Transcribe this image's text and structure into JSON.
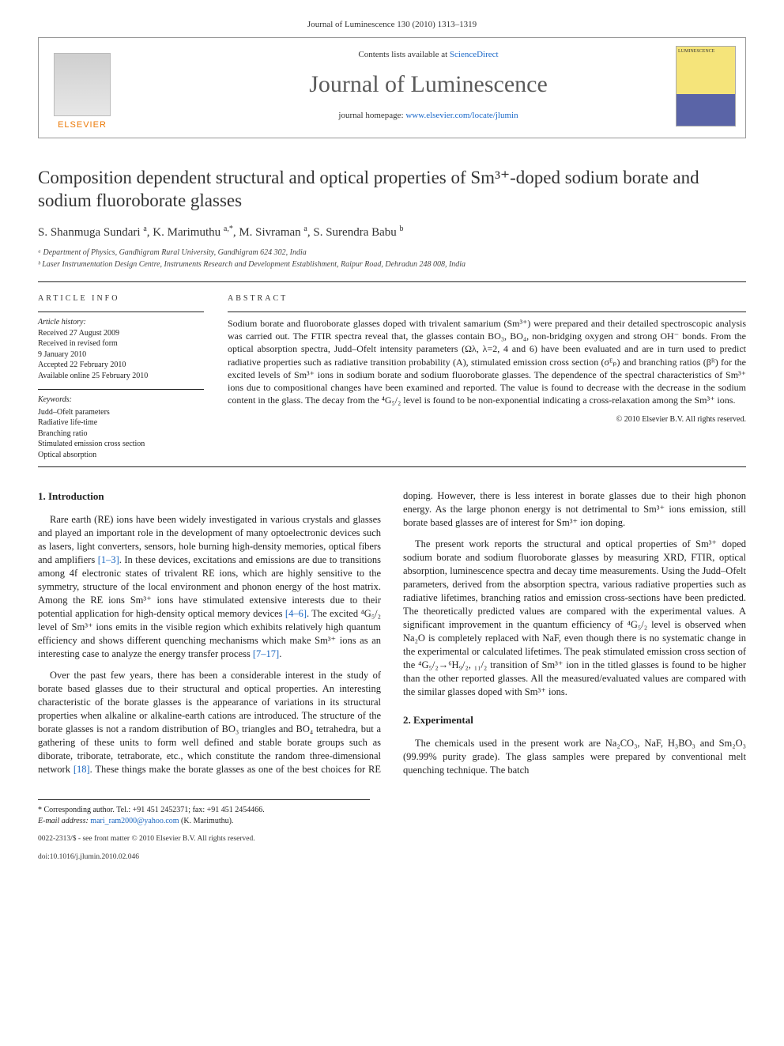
{
  "top_meta": "Journal of Luminescence 130 (2010) 1313–1319",
  "header": {
    "contents_prefix": "Contents lists available at ",
    "contents_link": "ScienceDirect",
    "journal_name": "Journal of Luminescence",
    "homepage_prefix": "journal homepage: ",
    "homepage_url": "www.elsevier.com/locate/jlumin",
    "publisher": "ELSEVIER",
    "cover_label": "LUMINESCENCE"
  },
  "title": "Composition dependent structural and optical properties of Sm³⁺-doped sodium borate and sodium fluoroborate glasses",
  "authors_html": "S. Shanmuga Sundari <sup>a</sup>, K. Marimuthu <sup>a,*</sup>, M. Sivraman <sup>a</sup>, S. Surendra Babu <sup>b</sup>",
  "affiliations": [
    "ᵃ Department of Physics, Gandhigram Rural University, Gandhigram 624 302, India",
    "ᵇ Laser Instrumentation Design Centre, Instruments Research and Development Establishment, Raipur Road, Dehradun 248 008, India"
  ],
  "info": {
    "section_label": "ARTICLE INFO",
    "history_label": "Article history:",
    "history": [
      "Received 27 August 2009",
      "Received in revised form",
      "9 January 2010",
      "Accepted 22 February 2010",
      "Available online 25 February 2010"
    ],
    "keywords_label": "Keywords:",
    "keywords": [
      "Judd–Ofelt parameters",
      "Radiative life-time",
      "Branching ratio",
      "Stimulated emission cross section",
      "Optical absorption"
    ]
  },
  "abstract": {
    "section_label": "ABSTRACT",
    "text": "Sodium borate and fluoroborate glasses doped with trivalent samarium (Sm³⁺) were prepared and their detailed spectroscopic analysis was carried out. The FTIR spectra reveal that, the glasses contain BO₃, BO₄, non-bridging oxygen and strong OH⁻ bonds. From the optical absorption spectra, Judd–Ofelt intensity parameters (Ωλ, λ=2, 4 and 6) have been evaluated and are in turn used to predict radiative properties such as radiative transition probability (A), stimulated emission cross section (σᴱₚ) and branching ratios (βᴿ) for the excited levels of Sm³⁺ ions in sodium borate and sodium fluoroborate glasses. The dependence of the spectral characteristics of Sm³⁺ ions due to compositional changes have been examined and reported. The value is found to decrease with the decrease in the sodium content in the glass. The decay from the ⁴G₅/₂ level is found to be non-exponential indicating a cross-relaxation among the Sm³⁺ ions.",
    "copyright": "© 2010 Elsevier B.V. All rights reserved."
  },
  "body": {
    "section1_heading": "1. Introduction",
    "p1": "Rare earth (RE) ions have been widely investigated in various crystals and glasses and played an important role in the development of many optoelectronic devices such as lasers, light converters, sensors, hole burning high-density memories, optical fibers and amplifiers [1–3]. In these devices, excitations and emissions are due to transitions among 4f electronic states of trivalent RE ions, which are highly sensitive to the symmetry, structure of the local environment and phonon energy of the host matrix. Among the RE ions Sm³⁺ ions have stimulated extensive interests due to their potential application for high-density optical memory devices [4–6]. The excited ⁴G₅/₂ level of Sm³⁺ ions emits in the visible region which exhibits relatively high quantum efficiency and shows different quenching mechanisms which make Sm³⁺ ions as an interesting case to analyze the energy transfer process [7–17].",
    "p2": "Over the past few years, there has been a considerable interest in the study of borate based glasses due to their structural and optical properties. An interesting characteristic of the borate glasses is the appearance of variations in its structural properties when alkaline or alkaline-earth cations are introduced. The structure of the borate glasses is not a random distribution of BO₃ triangles and BO₄ tetrahedra, but a gathering of these units to form well defined and stable borate groups such as diborate, triborate, tetraborate, etc., which constitute the random three-dimensional network [18]. These things make the borate glasses as one of the best choices for RE doping. However, there is less interest in borate glasses due to their high phonon energy. As the large phonon energy is not detrimental to Sm³⁺ ions emission, still borate based glasses are of interest for Sm³⁺ ion doping.",
    "p3": "The present work reports the structural and optical properties of Sm³⁺ doped sodium borate and sodium fluoroborate glasses by measuring XRD, FTIR, optical absorption, luminescence spectra and decay time measurements. Using the Judd–Ofelt parameters, derived from the absorption spectra, various radiative properties such as radiative lifetimes, branching ratios and emission cross-sections have been predicted. The theoretically predicted values are compared with the experimental values. A significant improvement in the quantum efficiency of ⁴G₅/₂ level is observed when Na₂O is completely replaced with NaF, even though there is no systematic change in the experimental or calculated lifetimes. The peak stimulated emission cross section of the ⁴G₅/₂→⁶H₉/₂, ₁₁/₂ transition of Sm³⁺ ion in the titled glasses is found to be higher than the other reported glasses. All the measured/evaluated values are compared with the similar glasses doped with Sm³⁺ ions.",
    "section2_heading": "2. Experimental",
    "p4": "The chemicals used in the present work are Na₂CO₃, NaF, H₃BO₃ and Sm₂O₃ (99.99% purity grade). The glass samples were prepared by conventional melt quenching technique. The batch"
  },
  "footnote": {
    "corr": "* Corresponding author. Tel.: +91 451 2452371; fax: +91 451 2454466.",
    "email_label": "E-mail address: ",
    "email": "mari_ram2000@yahoo.com",
    "email_tail": " (K. Marimuthu).",
    "front_matter": "0022-2313/$ - see front matter © 2010 Elsevier B.V. All rights reserved.",
    "doi": "doi:10.1016/j.jlumin.2010.02.046"
  },
  "refs": {
    "r1_3": "[1–3]",
    "r4_6": "[4–6]",
    "r7_17": "[7–17]",
    "r18": "[18]"
  }
}
